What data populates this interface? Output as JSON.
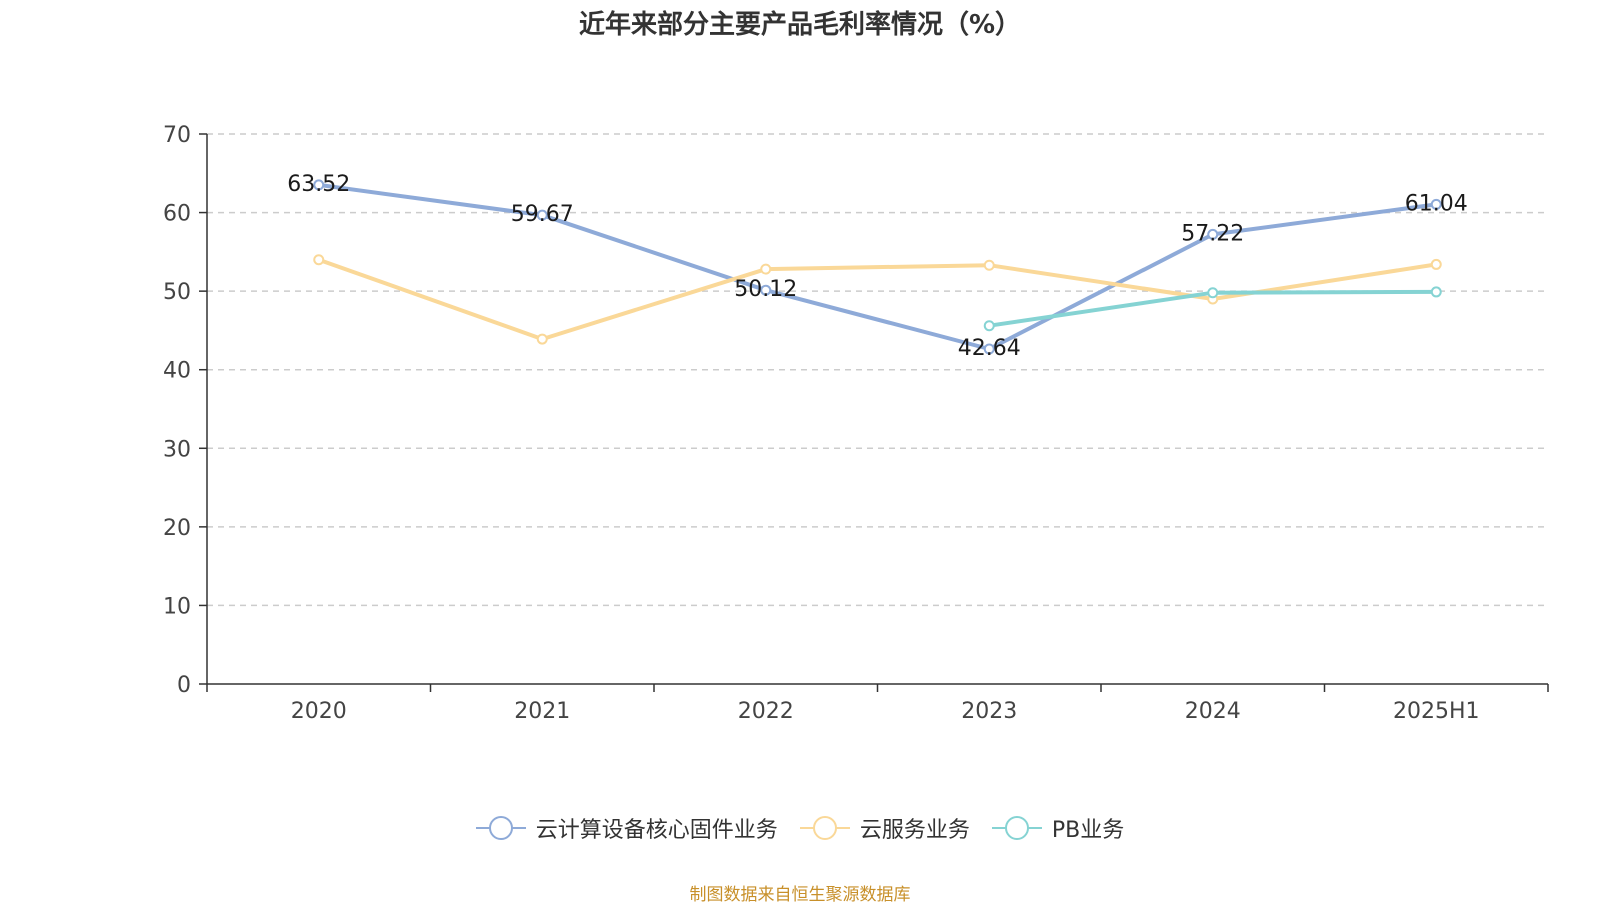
{
  "chart_data": {
    "type": "line",
    "title": "近年来部分主要产品毛利率情况（%）",
    "categories": [
      "2020",
      "2021",
      "2022",
      "2023",
      "2024",
      "2025H1"
    ],
    "ylim": [
      0,
      70
    ],
    "yticks": [
      0,
      10,
      20,
      30,
      40,
      50,
      60,
      70
    ],
    "grid": true,
    "legend_position": "bottom",
    "series": [
      {
        "name": "云计算设备核心固件业务",
        "color": "#8eaad8",
        "values": [
          63.52,
          59.67,
          50.12,
          42.64,
          57.22,
          61.04
        ],
        "show_labels": true
      },
      {
        "name": "云服务业务",
        "color": "#fad898",
        "values": [
          54.0,
          43.9,
          52.8,
          53.3,
          49.0,
          53.4
        ],
        "show_labels": false
      },
      {
        "name": "PB业务",
        "color": "#85d3d3",
        "values": [
          null,
          null,
          null,
          45.6,
          49.8,
          49.9
        ],
        "show_labels": false
      }
    ]
  },
  "source": "制图数据来自恒生聚源数据库"
}
